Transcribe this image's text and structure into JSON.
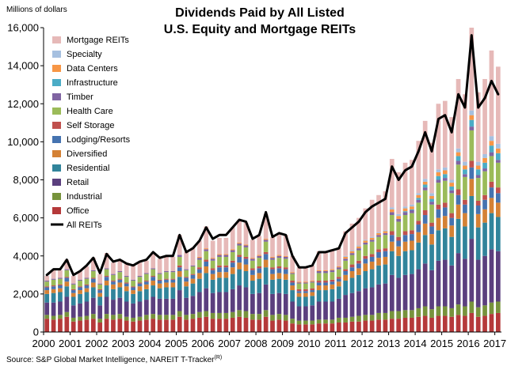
{
  "chart_data": {
    "type": "bar",
    "stacked": true,
    "title_line1": "Dividends Paid by All Listed",
    "title_line2": "U.S. Equity and Mortgage REITs",
    "ylabel": "Millions of dollars",
    "source": "Source: S&P Global Market Intelligence, NAREIT T-Tracker",
    "source_mark": "(R)",
    "ylim": [
      0,
      16000
    ],
    "y_ticks": [
      "0",
      "2,000",
      "4,000",
      "6,000",
      "8,000",
      "10,000",
      "12,000",
      "14,000",
      "16,000"
    ],
    "x_ticks": [
      "2000",
      "2001",
      "2002",
      "2003",
      "2004",
      "2005",
      "2006",
      "2007",
      "2008",
      "2009",
      "2010",
      "2011",
      "2012",
      "2013",
      "2014",
      "2015",
      "2016",
      "2017"
    ],
    "x_range": [
      2000,
      2017.25
    ],
    "legend_position": "top-left, inside plot",
    "line_series": {
      "name": "All REITs",
      "color": "#000000",
      "values": [
        3000,
        3300,
        3300,
        3800,
        3000,
        3200,
        3500,
        3900,
        3100,
        4100,
        3700,
        3800,
        3600,
        3500,
        3700,
        3800,
        4200,
        3900,
        4000,
        4000,
        5100,
        4200,
        4400,
        4800,
        5500,
        4900,
        5100,
        5100,
        5500,
        5900,
        5800,
        4900,
        5100,
        6300,
        5000,
        5200,
        5100,
        4000,
        3400,
        3400,
        3500,
        4200,
        4200,
        4300,
        4400,
        5200,
        5500,
        5800,
        6300,
        6600,
        6800,
        7000,
        8700,
        8000,
        8500,
        8700,
        9500,
        10500,
        9500,
        11200,
        11400,
        10500,
        12500,
        11800,
        15600,
        11800,
        12300,
        13200,
        12500
      ]
    },
    "series": [
      {
        "name": "Office",
        "color": "#b5393a",
        "values": [
          700,
          650,
          700,
          800,
          550,
          600,
          650,
          700,
          500,
          700,
          650,
          700,
          600,
          550,
          600,
          650,
          700,
          650,
          650,
          650,
          800,
          650,
          700,
          750,
          800,
          700,
          700,
          700,
          750,
          800,
          750,
          650,
          650,
          800,
          600,
          650,
          600,
          450,
          400,
          400,
          400,
          450,
          450,
          450,
          500,
          500,
          550,
          550,
          600,
          600,
          650,
          650,
          700,
          700,
          750,
          750,
          800,
          850,
          750,
          850,
          850,
          800,
          900,
          850,
          1000,
          800,
          850,
          950,
          1000
        ]
      },
      {
        "name": "Industrial",
        "color": "#77933c",
        "values": [
          200,
          200,
          200,
          250,
          200,
          200,
          200,
          250,
          200,
          250,
          250,
          250,
          200,
          200,
          200,
          250,
          250,
          250,
          250,
          250,
          300,
          250,
          250,
          300,
          300,
          300,
          300,
          300,
          300,
          350,
          350,
          300,
          300,
          350,
          300,
          300,
          300,
          250,
          200,
          200,
          200,
          200,
          200,
          200,
          250,
          250,
          250,
          300,
          300,
          300,
          350,
          350,
          400,
          400,
          400,
          400,
          450,
          500,
          450,
          500,
          500,
          450,
          550,
          500,
          600,
          500,
          550,
          600,
          600
        ]
      },
      {
        "name": "Retail",
        "color": "#5b3f7e",
        "values": [
          650,
          700,
          700,
          800,
          650,
          700,
          750,
          850,
          700,
          900,
          800,
          850,
          800,
          750,
          800,
          800,
          900,
          850,
          850,
          850,
          1100,
          900,
          950,
          1050,
          1200,
          1050,
          1100,
          1100,
          1200,
          1300,
          1250,
          1050,
          1100,
          1350,
          1100,
          1100,
          1100,
          900,
          750,
          750,
          800,
          950,
          950,
          950,
          1000,
          1200,
          1250,
          1300,
          1400,
          1450,
          1500,
          1550,
          1900,
          1750,
          1850,
          1900,
          2050,
          2250,
          2050,
          2400,
          2450,
          2250,
          2700,
          2500,
          3300,
          2500,
          2600,
          2800,
          2650
        ]
      },
      {
        "name": "Residential",
        "color": "#31849b",
        "values": [
          450,
          500,
          500,
          550,
          450,
          500,
          500,
          550,
          450,
          600,
          550,
          550,
          550,
          500,
          550,
          550,
          600,
          550,
          600,
          600,
          700,
          600,
          650,
          700,
          800,
          700,
          750,
          750,
          800,
          850,
          850,
          700,
          750,
          900,
          750,
          750,
          750,
          600,
          500,
          500,
          500,
          600,
          600,
          650,
          650,
          750,
          800,
          850,
          900,
          950,
          1000,
          1000,
          1250,
          1150,
          1250,
          1250,
          1400,
          1500,
          1350,
          1600,
          1650,
          1500,
          1800,
          1700,
          2250,
          1700,
          1750,
          1900,
          1800
        ]
      },
      {
        "name": "Diversified",
        "color": "#d48135",
        "values": [
          200,
          200,
          200,
          250,
          200,
          200,
          200,
          250,
          200,
          250,
          250,
          250,
          250,
          200,
          250,
          250,
          250,
          250,
          250,
          250,
          300,
          250,
          250,
          300,
          350,
          300,
          300,
          300,
          350,
          350,
          350,
          300,
          300,
          400,
          300,
          300,
          300,
          250,
          200,
          200,
          200,
          250,
          250,
          250,
          250,
          300,
          350,
          350,
          400,
          400,
          400,
          400,
          500,
          500,
          500,
          500,
          550,
          600,
          550,
          650,
          650,
          600,
          750,
          700,
          900,
          700,
          700,
          800,
          750
        ]
      },
      {
        "name": "Lodging/Resorts",
        "color": "#4573b0",
        "values": [
          150,
          150,
          150,
          200,
          150,
          150,
          150,
          200,
          150,
          200,
          150,
          150,
          150,
          150,
          150,
          150,
          200,
          150,
          150,
          150,
          200,
          200,
          200,
          200,
          250,
          200,
          250,
          250,
          250,
          300,
          300,
          250,
          250,
          300,
          250,
          250,
          250,
          150,
          100,
          100,
          100,
          150,
          150,
          150,
          150,
          200,
          200,
          250,
          250,
          250,
          300,
          300,
          350,
          300,
          350,
          350,
          400,
          450,
          400,
          450,
          450,
          400,
          500,
          450,
          600,
          450,
          500,
          550,
          500
        ]
      },
      {
        "name": "Self Storage",
        "color": "#c0504d",
        "values": [
          50,
          50,
          50,
          50,
          50,
          50,
          50,
          50,
          50,
          50,
          50,
          50,
          50,
          50,
          50,
          50,
          50,
          50,
          50,
          50,
          100,
          50,
          50,
          100,
          100,
          100,
          100,
          100,
          100,
          100,
          100,
          100,
          100,
          100,
          100,
          100,
          100,
          100,
          100,
          100,
          100,
          100,
          100,
          100,
          100,
          100,
          150,
          150,
          150,
          150,
          150,
          150,
          200,
          200,
          200,
          200,
          200,
          250,
          200,
          250,
          250,
          250,
          300,
          250,
          350,
          250,
          250,
          300,
          300
        ]
      },
      {
        "name": "Health Care",
        "color": "#9bbb59",
        "values": [
          250,
          300,
          300,
          350,
          250,
          300,
          300,
          350,
          250,
          350,
          300,
          350,
          300,
          300,
          300,
          350,
          350,
          300,
          350,
          350,
          450,
          350,
          400,
          400,
          450,
          400,
          450,
          450,
          450,
          500,
          500,
          400,
          450,
          550,
          400,
          450,
          450,
          350,
          300,
          300,
          300,
          400,
          400,
          400,
          400,
          450,
          500,
          550,
          600,
          650,
          650,
          700,
          850,
          800,
          850,
          900,
          950,
          1050,
          950,
          1150,
          1150,
          1050,
          1300,
          1200,
          1600,
          1200,
          1250,
          1350,
          1300
        ]
      },
      {
        "name": "Timber",
        "color": "#8064a2",
        "values": [
          50,
          50,
          50,
          50,
          50,
          50,
          50,
          50,
          50,
          50,
          50,
          50,
          50,
          50,
          50,
          50,
          50,
          50,
          50,
          50,
          100,
          50,
          50,
          100,
          100,
          100,
          100,
          100,
          100,
          100,
          100,
          100,
          100,
          100,
          100,
          100,
          100,
          50,
          50,
          50,
          50,
          100,
          100,
          100,
          100,
          100,
          100,
          100,
          100,
          100,
          100,
          100,
          150,
          150,
          150,
          150,
          150,
          150,
          150,
          150,
          150,
          150,
          200,
          150,
          200,
          150,
          150,
          200,
          150
        ]
      },
      {
        "name": "Infrastructure",
        "color": "#4bacc6",
        "values": [
          0,
          0,
          0,
          0,
          0,
          0,
          0,
          0,
          0,
          0,
          0,
          0,
          0,
          0,
          0,
          0,
          0,
          0,
          0,
          0,
          0,
          0,
          0,
          0,
          0,
          0,
          0,
          0,
          0,
          0,
          0,
          0,
          0,
          0,
          0,
          0,
          0,
          0,
          0,
          0,
          0,
          0,
          0,
          0,
          0,
          0,
          0,
          0,
          0,
          0,
          0,
          0,
          0,
          0,
          50,
          50,
          100,
          150,
          150,
          200,
          200,
          200,
          250,
          250,
          350,
          300,
          300,
          350,
          350
        ]
      },
      {
        "name": "Data Centers",
        "color": "#f79646",
        "values": [
          0,
          0,
          0,
          0,
          0,
          0,
          0,
          0,
          0,
          0,
          0,
          0,
          0,
          0,
          0,
          0,
          0,
          0,
          0,
          0,
          0,
          0,
          0,
          50,
          50,
          50,
          50,
          50,
          50,
          50,
          50,
          50,
          50,
          50,
          50,
          50,
          50,
          50,
          50,
          50,
          50,
          50,
          50,
          50,
          50,
          100,
          100,
          100,
          100,
          100,
          100,
          100,
          150,
          150,
          150,
          150,
          150,
          150,
          150,
          200,
          200,
          200,
          200,
          200,
          250,
          200,
          250,
          250,
          250
        ]
      },
      {
        "name": "Specialty",
        "color": "#a6c0e0",
        "values": [
          0,
          0,
          0,
          0,
          0,
          0,
          0,
          0,
          0,
          0,
          0,
          0,
          0,
          0,
          0,
          0,
          0,
          0,
          0,
          0,
          0,
          0,
          0,
          0,
          0,
          0,
          0,
          0,
          0,
          0,
          0,
          0,
          0,
          0,
          0,
          0,
          0,
          0,
          0,
          0,
          0,
          0,
          0,
          0,
          0,
          50,
          50,
          50,
          50,
          50,
          50,
          50,
          100,
          100,
          100,
          100,
          100,
          150,
          150,
          150,
          150,
          150,
          200,
          200,
          250,
          200,
          200,
          250,
          250
        ]
      },
      {
        "name": "Mortgage REITs",
        "color": "#e6b9b8",
        "values": [
          250,
          450,
          400,
          500,
          400,
          450,
          600,
          650,
          500,
          800,
          600,
          600,
          650,
          750,
          700,
          650,
          850,
          750,
          750,
          750,
          1050,
          900,
          950,
          850,
          1150,
          900,
          850,
          850,
          1150,
          1200,
          1150,
          950,
          1000,
          1300,
          1050,
          1100,
          1100,
          850,
          750,
          750,
          800,
          1000,
          1000,
          1050,
          1000,
          1300,
          1400,
          1450,
          1650,
          1950,
          1950,
          2050,
          2550,
          2200,
          2300,
          2350,
          2750,
          3050,
          2650,
          3450,
          3500,
          3300,
          3650,
          3550,
          4350,
          3650,
          3950,
          4500,
          4050
        ]
      }
    ]
  }
}
